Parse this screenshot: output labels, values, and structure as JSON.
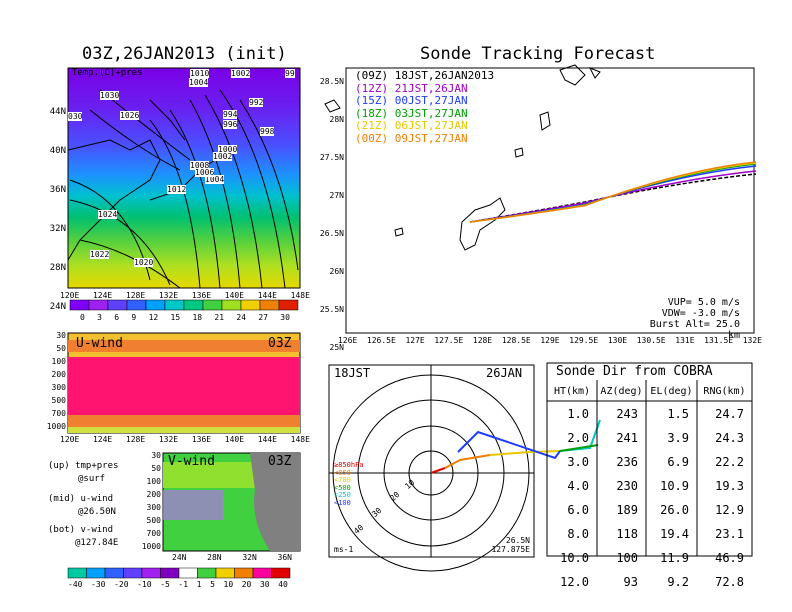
{
  "main_map": {
    "title": "03Z,26JAN2013 (init)",
    "label": "Temp.(C)+pres",
    "lat_labels": [
      "44N",
      "40N",
      "36N",
      "32N",
      "28N",
      "24N"
    ],
    "lon_labels": [
      "120E",
      "124E",
      "128E",
      "132E",
      "136E",
      "140E",
      "144E",
      "148E"
    ],
    "pressure_labels": [
      "1030",
      "1026",
      "1022",
      "1020",
      "1024",
      "1012",
      "1008",
      "1004",
      "1006",
      "1000",
      "1002",
      "998",
      "996",
      "994",
      "992",
      "1004",
      "1002",
      "99",
      "030",
      "1010",
      "1010"
    ],
    "colorbar_ticks": [
      "0",
      "3",
      "6",
      "9",
      "12",
      "15",
      "18",
      "21",
      "24",
      "27",
      "30"
    ],
    "colorbar_colors": [
      "#8000ff",
      "#a020f0",
      "#6040ff",
      "#3060ff",
      "#00a0ff",
      "#00c8c8",
      "#00c880",
      "#40d040",
      "#a0e020",
      "#f0d000",
      "#f08000",
      "#e02000"
    ]
  },
  "u_wind": {
    "title": "U-wind",
    "time": "03Z",
    "p_labels": [
      "30",
      "50",
      "100",
      "200",
      "300",
      "500",
      "700",
      "1000"
    ],
    "lon_labels": [
      "120E",
      "124E",
      "128E",
      "132E",
      "136E",
      "140E",
      "144E",
      "148E"
    ]
  },
  "v_wind": {
    "title": "V-wind",
    "time": "03Z",
    "p_labels": [
      "30",
      "50",
      "100",
      "200",
      "300",
      "500",
      "700",
      "1000"
    ],
    "lat_labels": [
      "24N",
      "28N",
      "32N",
      "36N"
    ],
    "colorbar_ticks": [
      "-40",
      "-30",
      "-20",
      "-10",
      "-5",
      "-1",
      "1",
      "5",
      "10",
      "20",
      "30",
      "40"
    ],
    "colorbar_colors": [
      "#00c8a0",
      "#00a0ff",
      "#3060ff",
      "#6040ff",
      "#a020f0",
      "#8000c0",
      "#ffffff",
      "#40d040",
      "#f0d000",
      "#f08000",
      "#ff00a0",
      "#e00000"
    ]
  },
  "legend_text": {
    "line1": "(up) tmp+pres",
    "line2": "@surf",
    "line3": "(mid) u-wind",
    "line4": "@26.50N",
    "line5": "(bot) v-wind",
    "line6": "@127.84E"
  },
  "tracking": {
    "title": "Sonde Tracking Forecast",
    "lat_labels": [
      "28.5N",
      "28N",
      "27.5N",
      "27N",
      "26.5N",
      "26N",
      "25.5N",
      "25N"
    ],
    "lon_labels": [
      "126E",
      "126.5E",
      "127E",
      "127.5E",
      "128E",
      "128.5E",
      "129E",
      "129.5E",
      "130E",
      "130.5E",
      "131E",
      "131.5E",
      "132E"
    ],
    "runs": [
      {
        "code": "(09Z)",
        "label": "18JST,26JAN2013",
        "color": "#000000"
      },
      {
        "code": "(12Z)",
        "label": "21JST,26JAN",
        "color": "#a000c8"
      },
      {
        "code": "(15Z)",
        "label": "00JST,27JAN",
        "color": "#1e3cff"
      },
      {
        "code": "(18Z)",
        "label": "03JST,27JAN",
        "color": "#00a000"
      },
      {
        "code": "(21Z)",
        "label": "06JST,27JAN",
        "color": "#e6c800"
      },
      {
        "code": "(00Z)",
        "label": "09JST,27JAN",
        "color": "#f08000"
      }
    ],
    "vup": "VUP= 5.0 m/s",
    "vdw": "VDW= -3.0 m/s",
    "burst": "Burst Alt= 25.0 km"
  },
  "polar": {
    "time_left": "18JST",
    "time_right": "26JAN",
    "ring_labels": [
      "10",
      "20",
      "30",
      "40"
    ],
    "legend": [
      {
        "label": "≥850hPa",
        "color": "#e00000"
      },
      {
        "label": "<850",
        "color": "#f08000"
      },
      {
        "label": "<700",
        "color": "#e6c800"
      },
      {
        "label": "<500",
        "color": "#00a000"
      },
      {
        "label": "<250",
        "color": "#00c8c8"
      },
      {
        "label": "<100",
        "color": "#1e3cff"
      }
    ],
    "unit": "ms-1",
    "loc_lat": "26.5N",
    "loc_lon": "127.875E"
  },
  "sonde_table": {
    "title": "Sonde Dir from COBRA",
    "headers": [
      "HT(km)",
      "AZ(deg)",
      "EL(deg)",
      "RNG(km)"
    ],
    "rows": [
      [
        "1.0",
        "243",
        "1.5",
        "24.7"
      ],
      [
        "2.0",
        "241",
        "3.9",
        "24.3"
      ],
      [
        "3.0",
        "236",
        "6.9",
        "22.2"
      ],
      [
        "4.0",
        "230",
        "10.9",
        "19.3"
      ],
      [
        "6.0",
        "189",
        "26.0",
        "12.9"
      ],
      [
        "8.0",
        "118",
        "19.4",
        "23.1"
      ],
      [
        "10.0",
        "100",
        "11.9",
        "46.9"
      ],
      [
        "12.0",
        "93",
        "9.2",
        "72.8"
      ]
    ]
  }
}
